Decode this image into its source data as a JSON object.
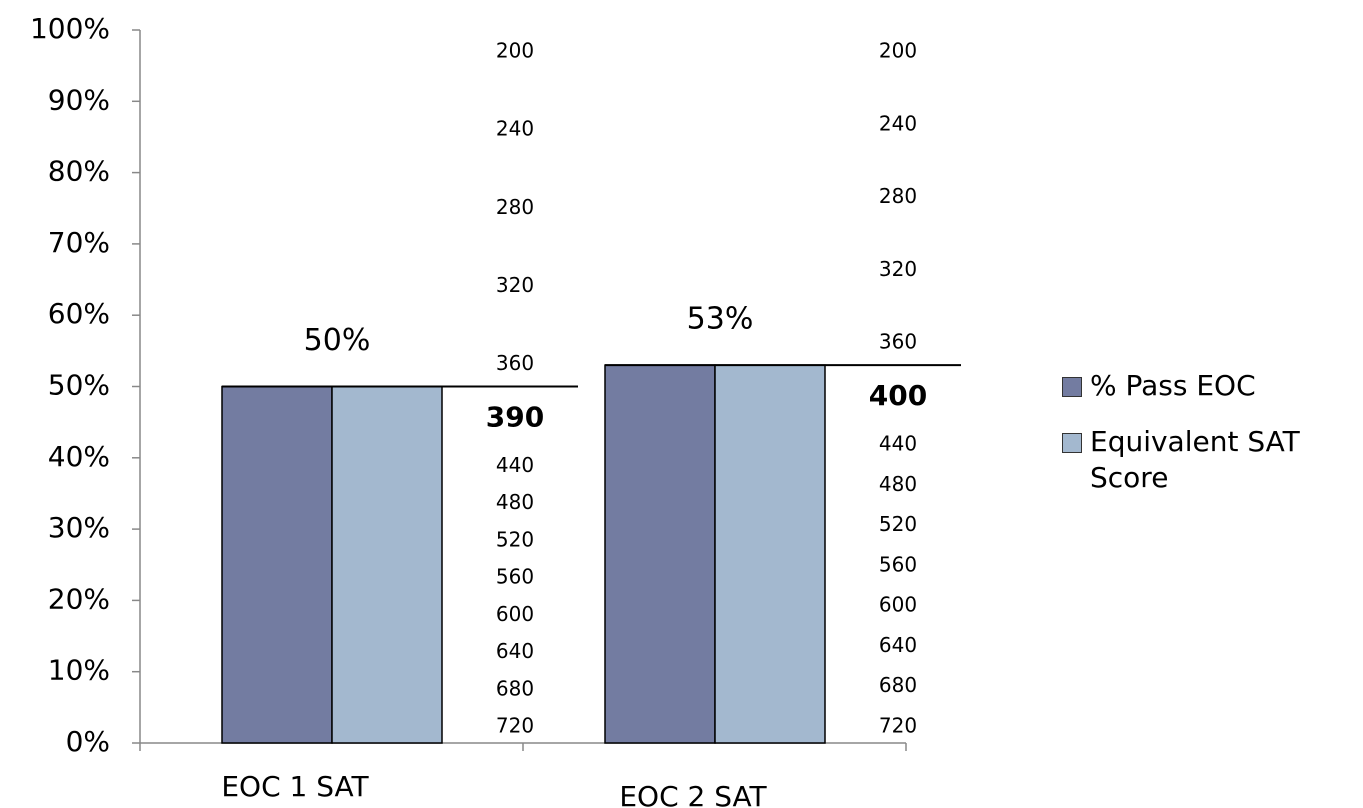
{
  "chart_data": {
    "type": "bar",
    "categories": [
      "EOC 1 SAT",
      "EOC 2 SAT"
    ],
    "series": [
      {
        "name": "% Pass EOC",
        "color": "#737ca1",
        "values": [
          50,
          53
        ],
        "value_labels": [
          "50%",
          "53%"
        ]
      },
      {
        "name": "Equivalent SAT Score",
        "color": "#a3b8cf",
        "values": [
          50,
          53
        ]
      }
    ],
    "ylim": [
      0,
      100
    ],
    "yticks": [
      {
        "value": 0,
        "label": "0%"
      },
      {
        "value": 10,
        "label": "10%"
      },
      {
        "value": 20,
        "label": "20%"
      },
      {
        "value": 30,
        "label": "30%"
      },
      {
        "value": 40,
        "label": "40%"
      },
      {
        "value": 50,
        "label": "50%"
      },
      {
        "value": 60,
        "label": "60%"
      },
      {
        "value": 70,
        "label": "70%"
      },
      {
        "value": 80,
        "label": "80%"
      },
      {
        "value": 90,
        "label": "90%"
      },
      {
        "value": 100,
        "label": "100%"
      }
    ],
    "score_color": "#c00000",
    "sat_scales": [
      {
        "scale_above": [
          200,
          240,
          280,
          320,
          360
        ],
        "score": 390,
        "scale_below": [
          440,
          480,
          520,
          560,
          600,
          640,
          680,
          720
        ]
      },
      {
        "scale_above": [
          200,
          240,
          280,
          320,
          360
        ],
        "score": 400,
        "scale_below": [
          440,
          480,
          520,
          560,
          600,
          640,
          680,
          720
        ]
      }
    ],
    "legend": "right"
  }
}
